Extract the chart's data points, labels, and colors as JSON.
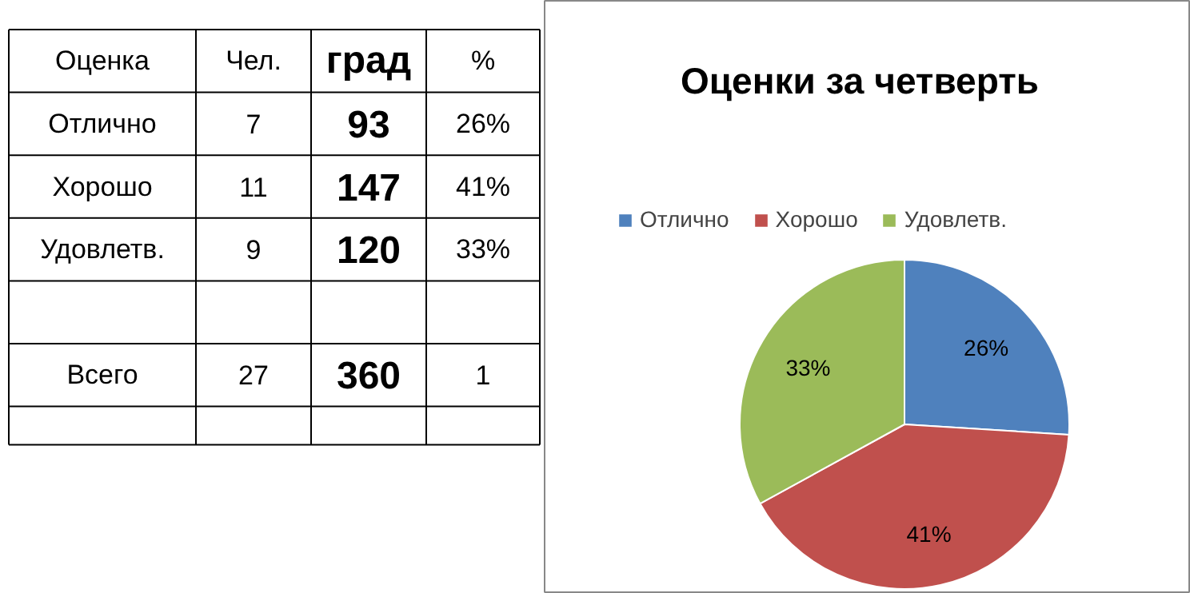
{
  "chart_data": [
    {
      "type": "other",
      "categories": [
        "Оценка",
        "Чел.",
        "град",
        "%"
      ],
      "y_categories": [
        "Отлично",
        "Хорошо",
        "Удовлетв.",
        null,
        "Всего",
        null
      ],
      "cell_labels": [
        [
          "7",
          "93",
          "26%"
        ],
        [
          "11",
          "147",
          "41%"
        ],
        [
          "9",
          "120",
          "33%"
        ],
        [
          null,
          null,
          null
        ],
        [
          "27",
          "360",
          "1"
        ],
        [
          null,
          null,
          null
        ]
      ]
    },
    {
      "type": "pie",
      "title": "Оценки за четверть",
      "categories": [
        "Отлично",
        "Хорошо",
        "Удовлетв."
      ],
      "values": [
        26,
        41,
        33
      ],
      "colors": [
        "#4f81bd",
        "#c0504d",
        "#9bbb59"
      ],
      "value_labels": [
        "26%",
        "41%",
        "33%"
      ],
      "legend": "top"
    }
  ]
}
